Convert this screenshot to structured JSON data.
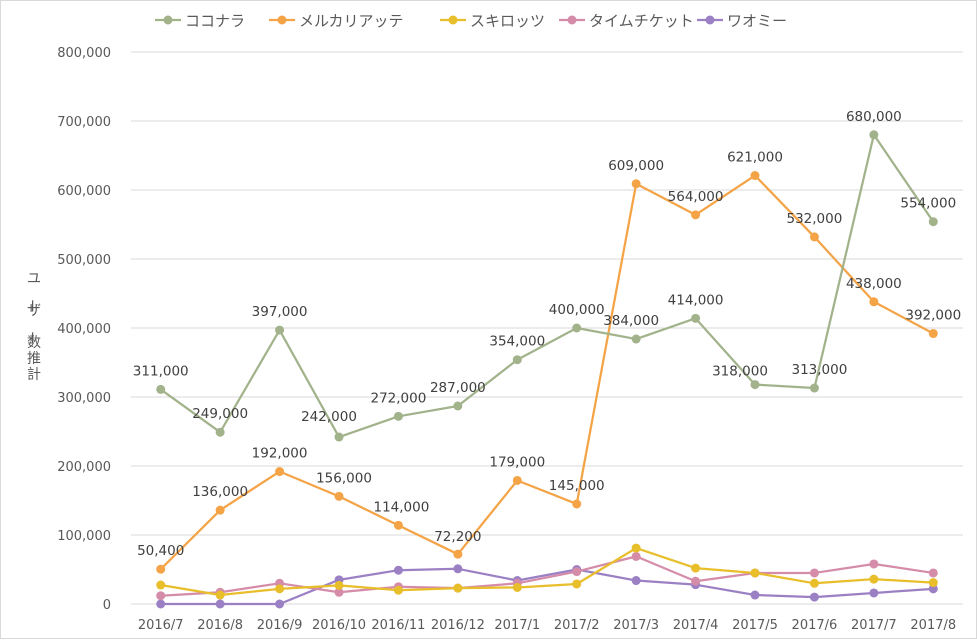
{
  "chart_data": {
    "type": "line",
    "title": "",
    "xlabel": "",
    "ylabel": "ユーザー数推計",
    "ylim": [
      0,
      800000
    ],
    "ytick_step": 100000,
    "yticks": [
      "0",
      "100,000",
      "200,000",
      "300,000",
      "400,000",
      "500,000",
      "600,000",
      "700,000",
      "800,000"
    ],
    "grid": true,
    "legend_position": "top",
    "categories": [
      "2016/7",
      "2016/8",
      "2016/9",
      "2016/10",
      "2016/11",
      "2016/12",
      "2017/1",
      "2017/2",
      "2017/3",
      "2017/4",
      "2017/5",
      "2017/6",
      "2017/7",
      "2017/8"
    ],
    "series": [
      {
        "name": "ココナラ",
        "color": "#a2b38c",
        "values": [
          311000,
          249000,
          397000,
          242000,
          272000,
          287000,
          354000,
          400000,
          384000,
          414000,
          318000,
          313000,
          680000,
          554000
        ],
        "data_labels": [
          "311,000",
          "249,000",
          "397,000",
          "242,000",
          "272,000",
          "287,000",
          "354,000",
          "400,000",
          "384,000",
          "414,000",
          "318,000",
          "313,000",
          "680,000",
          "554,000"
        ]
      },
      {
        "name": "メルカリアッテ",
        "color": "#f4a346",
        "values": [
          50400,
          136000,
          192000,
          156000,
          114000,
          72200,
          179000,
          145000,
          609000,
          564000,
          621000,
          532000,
          438000,
          392000
        ],
        "data_labels": [
          "50,400",
          "136,000",
          "192,000",
          "156,000",
          "114,000",
          "72,200",
          "179,000",
          "145,000",
          "609,000",
          "564,000",
          "621,000",
          "532,000",
          "438,000",
          "392,000"
        ]
      },
      {
        "name": "スキロッツ",
        "color": "#e8be2a",
        "values": [
          27500,
          13000,
          22000,
          27000,
          20000,
          23000,
          24000,
          29000,
          81000,
          52000,
          45000,
          30000,
          36000,
          31000
        ]
      },
      {
        "name": "タイムチケット",
        "color": "#d48ca8",
        "values": [
          12000,
          17000,
          30000,
          17000,
          25000,
          23000,
          30000,
          47000,
          69000,
          33000,
          45000,
          45000,
          58000,
          45000
        ]
      },
      {
        "name": "ワオミー",
        "color": "#9b80c4",
        "values": [
          0,
          0,
          0,
          35000,
          49000,
          51000,
          34000,
          50000,
          34000,
          28000,
          13000,
          10000,
          16000,
          22000
        ]
      }
    ]
  }
}
